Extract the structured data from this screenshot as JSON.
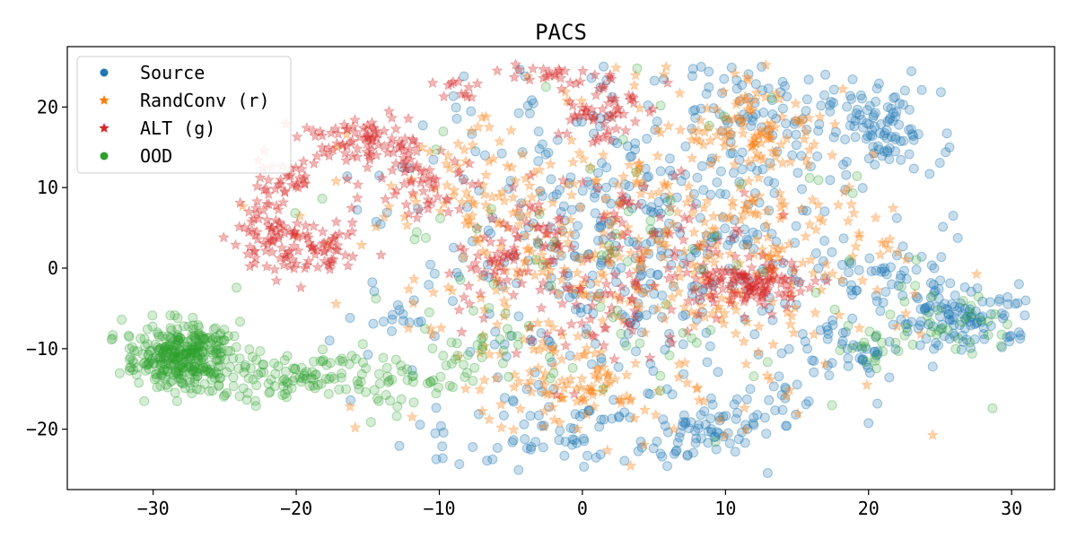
{
  "chart_data": {
    "type": "scatter",
    "title": "PACS",
    "xlabel": "",
    "ylabel": "",
    "xlim": [
      -36,
      33
    ],
    "ylim": [
      -27.5,
      27.5
    ],
    "xticks": [
      -30,
      -20,
      -10,
      0,
      10,
      20,
      30
    ],
    "xtick_labels": [
      "−30",
      "−20",
      "−10",
      "0",
      "10",
      "20",
      "30"
    ],
    "yticks": [
      -20,
      -10,
      0,
      10,
      20
    ],
    "ytick_labels": [
      "−20",
      "−10",
      "0",
      "10",
      "20"
    ],
    "grid": false,
    "legend_position": "top-left",
    "series": [
      {
        "name": "Source",
        "marker": "circle",
        "color": "#1f77b4",
        "alpha": 0.25,
        "clusters": [
          {
            "cx": 21,
            "cy": 17,
            "sx": 2.0,
            "sy": 2.5,
            "n": 90
          },
          {
            "cx": 27,
            "cy": -6,
            "sx": 2.5,
            "sy": 2.0,
            "n": 110
          },
          {
            "cx": 21,
            "cy": -1,
            "sx": 2.0,
            "sy": 2.0,
            "n": 40
          },
          {
            "cx": 8,
            "cy": -21,
            "sx": 2.0,
            "sy": 1.5,
            "n": 50
          },
          {
            "cx": 12,
            "cy": -18,
            "sx": 2.0,
            "sy": 1.5,
            "n": 25
          },
          {
            "cx": 18,
            "cy": -10,
            "sx": 2.5,
            "sy": 2.0,
            "n": 45
          },
          {
            "cx": 12,
            "cy": 20,
            "sx": 3.0,
            "sy": 3.0,
            "n": 60
          },
          {
            "cx": 4,
            "cy": 3,
            "sx": 8.5,
            "sy": 11.0,
            "n": 480
          },
          {
            "cx": -13,
            "cy": -6,
            "sx": 1.5,
            "sy": 1.5,
            "n": 15
          },
          {
            "cx": -2,
            "cy": -20,
            "sx": 5.0,
            "sy": 2.5,
            "n": 60
          }
        ]
      },
      {
        "name": "RandConv (r)",
        "marker": "star",
        "color": "#ff7f0e",
        "alpha": 0.35,
        "clusters": [
          {
            "cx": 12,
            "cy": 17,
            "sx": 2.5,
            "sy": 3.0,
            "n": 90
          },
          {
            "cx": 0,
            "cy": -15,
            "sx": 2.0,
            "sy": 1.5,
            "n": 55
          },
          {
            "cx": 3,
            "cy": 0,
            "sx": 9.0,
            "sy": 10.0,
            "n": 430
          },
          {
            "cx": -8,
            "cy": 10,
            "sx": 3.0,
            "sy": 3.0,
            "n": 35
          },
          {
            "cx": 14,
            "cy": 4,
            "sx": 4.0,
            "sy": 5.0,
            "n": 60
          }
        ]
      },
      {
        "name": "ALT (g)",
        "marker": "star",
        "color": "#d62728",
        "alpha": 0.35,
        "clusters": [
          {
            "cx": -19,
            "cy": 2,
            "sx": 2.0,
            "sy": 1.5,
            "n": 80
          },
          {
            "cx": -22,
            "cy": 5,
            "sx": 1.5,
            "sy": 2.0,
            "n": 45
          },
          {
            "cx": -16,
            "cy": 16,
            "sx": 2.0,
            "sy": 1.5,
            "n": 70
          },
          {
            "cx": -21,
            "cy": 11,
            "sx": 1.5,
            "sy": 1.0,
            "n": 30
          },
          {
            "cx": -11,
            "cy": 10,
            "sx": 2.0,
            "sy": 2.0,
            "n": 45
          },
          {
            "cx": -13,
            "cy": 15,
            "sx": 1.5,
            "sy": 1.5,
            "n": 25
          },
          {
            "cx": 1,
            "cy": 20,
            "sx": 1.5,
            "sy": 2.5,
            "n": 60
          },
          {
            "cx": -3,
            "cy": 24,
            "sx": 1.5,
            "sy": 0.8,
            "n": 20
          },
          {
            "cx": -9,
            "cy": 22,
            "sx": 1.0,
            "sy": 1.0,
            "n": 12
          },
          {
            "cx": 12,
            "cy": -2,
            "sx": 2.0,
            "sy": 1.5,
            "n": 120
          },
          {
            "cx": -2,
            "cy": 5,
            "sx": 2.5,
            "sy": 2.5,
            "n": 50
          },
          {
            "cx": -5,
            "cy": 1,
            "sx": 2.5,
            "sy": 2.0,
            "n": 45
          },
          {
            "cx": 1,
            "cy": -6,
            "sx": 4.0,
            "sy": 4.0,
            "n": 60
          },
          {
            "cx": 6,
            "cy": 3,
            "sx": 4.0,
            "sy": 4.0,
            "n": 45
          }
        ]
      },
      {
        "name": "OOD",
        "marker": "circle",
        "color": "#2ca02c",
        "alpha": 0.2,
        "clusters": [
          {
            "cx": -28,
            "cy": -11,
            "sx": 2.0,
            "sy": 2.0,
            "n": 350
          },
          {
            "cx": -22,
            "cy": -14,
            "sx": 1.5,
            "sy": 1.5,
            "n": 45
          },
          {
            "cx": -18,
            "cy": -13,
            "sx": 1.5,
            "sy": 1.5,
            "n": 40
          },
          {
            "cx": -13,
            "cy": -14,
            "sx": 2.0,
            "sy": 2.0,
            "n": 40
          },
          {
            "cx": -8,
            "cy": -10,
            "sx": 2.0,
            "sy": 3.0,
            "n": 30
          },
          {
            "cx": 26,
            "cy": -7,
            "sx": 2.0,
            "sy": 2.0,
            "n": 30
          },
          {
            "cx": 5,
            "cy": 0,
            "sx": 10.0,
            "sy": 10.0,
            "n": 90
          },
          {
            "cx": 20,
            "cy": -10,
            "sx": 1.5,
            "sy": 1.5,
            "n": 15
          }
        ]
      }
    ]
  }
}
